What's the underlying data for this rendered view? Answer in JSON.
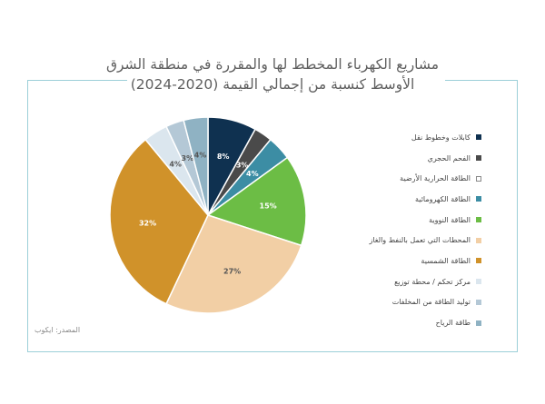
{
  "title_line1": "مشاريع الكهرباء المخطط لها والمقررة في منطقة الشرق",
  "title_line2": "الأوسط كنسبة من إجمالي القيمة (2020-2024)",
  "source": "المصدر: ايكوب",
  "chart_data": {
    "type": "pie",
    "title": "مشاريع الكهرباء المخطط لها والمقررة في منطقة الشرق الأوسط كنسبة من إجمالي القيمة (2020-2024)",
    "legend_position": "right",
    "slices": [
      {
        "label": "كابلات وخطوط نقل",
        "value": 8,
        "display": "8%",
        "color": "#0f3150"
      },
      {
        "label": "الفحم الحجري",
        "value": 3,
        "display": "3%",
        "color": "#4a4a4a"
      },
      {
        "label": "الطاقة الحرارية الأرضية",
        "value": 0,
        "display": "",
        "color": "#ffffff"
      },
      {
        "label": "الطاقة الكهرومائية",
        "value": 4,
        "display": "4%",
        "color": "#3c8da4"
      },
      {
        "label": "الطاقة النووية",
        "value": 15,
        "display": "15%",
        "color": "#6cbd45"
      },
      {
        "label": "المحطات التي تعمل بالنفط والغاز",
        "value": 27,
        "display": "27%",
        "color": "#f2cfa5"
      },
      {
        "label": "الطاقة الشمسية",
        "value": 32,
        "display": "32%",
        "color": "#d0922a"
      },
      {
        "label": "مركز تحكم / محطة توزيع",
        "value": 4,
        "display": "4%",
        "color": "#dbe6ee"
      },
      {
        "label": "توليد الطاقة من المخلفات",
        "value": 3,
        "display": "3%",
        "color": "#b4c8d6"
      },
      {
        "label": "طاقة الرياح",
        "value": 4,
        "display": "4%",
        "color": "#8fb2c3"
      }
    ]
  }
}
